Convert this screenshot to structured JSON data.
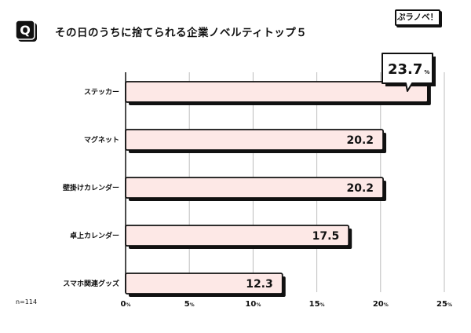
{
  "header": {
    "badge_letter": "Q",
    "title": "その日のうちに捨てられる企業ノベルティトップ５",
    "logo_text": "ぷラノベ！"
  },
  "sample_note": "n=114",
  "colors": {
    "bar_fill": "#fde8e6",
    "bar_stroke": "#111111",
    "grid": "#bdbdbd",
    "badge": "#111111"
  },
  "chart_data": {
    "type": "bar",
    "orientation": "horizontal",
    "categories": [
      "ステッカー",
      "マグネット",
      "壁掛けカレンダー",
      "卓上カレンダー",
      "スマホ関連グッズ"
    ],
    "values": [
      23.7,
      20.2,
      20.2,
      17.5,
      12.3
    ],
    "value_labels": [
      "23.7",
      "20.2",
      "20.2",
      "17.5",
      "12.3"
    ],
    "highlight_index": 0,
    "highlight_unit": "%",
    "xlim": [
      0,
      25
    ],
    "xticks": [
      0,
      5,
      10,
      15,
      20,
      25
    ],
    "xtick_labels": [
      "0",
      "5",
      "10",
      "15",
      "20",
      "25"
    ],
    "tick_unit": "%",
    "grid": true
  }
}
